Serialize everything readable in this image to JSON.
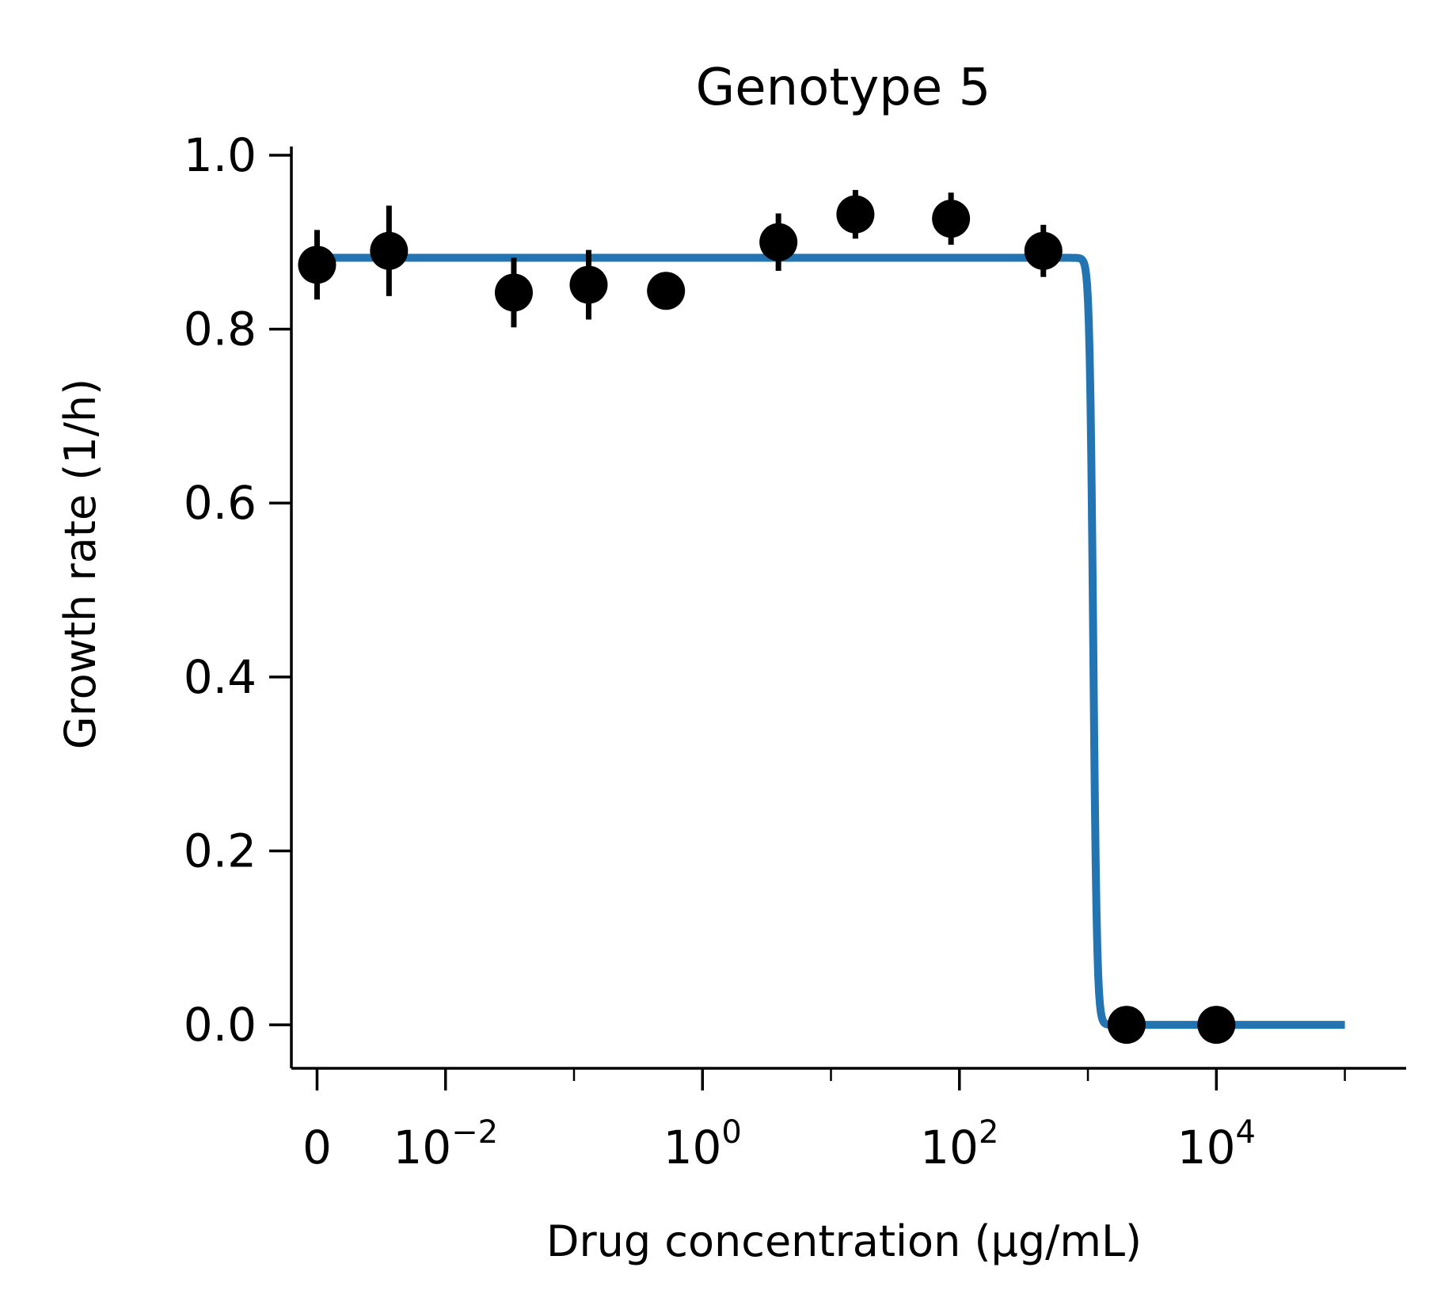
{
  "chart_data": {
    "type": "scatter",
    "title": "Genotype 5",
    "xlabel": "Drug concentration (µg/mL)",
    "ylabel": "Growth rate (1/h)",
    "x_scale": "symlog",
    "xlim": [
      -0.002,
      300000
    ],
    "ylim": [
      -0.05,
      1.01
    ],
    "grid": false,
    "colors": {
      "fit": "#2274b2",
      "points": "#000000"
    },
    "y_ticks": [
      {
        "value": 0.0,
        "label": "0.0"
      },
      {
        "value": 0.2,
        "label": "0.2"
      },
      {
        "value": 0.4,
        "label": "0.4"
      },
      {
        "value": 0.6,
        "label": "0.6"
      },
      {
        "value": 0.8,
        "label": "0.8"
      },
      {
        "value": 1.0,
        "label": "1.0"
      }
    ],
    "x_ticks": [
      {
        "value": 0,
        "base": "0",
        "exp": ""
      },
      {
        "value": 0.01,
        "base": "10",
        "exp": "−2"
      },
      {
        "value": 1,
        "base": "10",
        "exp": "0"
      },
      {
        "value": 100,
        "base": "10",
        "exp": "2"
      },
      {
        "value": 10000,
        "base": "10",
        "exp": "4"
      }
    ],
    "x_minor_ticks": [
      0.1,
      10,
      1000,
      100000
    ],
    "points": [
      {
        "x": 0,
        "y": 0.874,
        "err": 0.04
      },
      {
        "x": 0.0056,
        "y": 0.89,
        "err": 0.052
      },
      {
        "x": 0.034,
        "y": 0.842,
        "err": 0.04
      },
      {
        "x": 0.13,
        "y": 0.851,
        "err": 0.04
      },
      {
        "x": 0.52,
        "y": 0.844,
        "err": 0.01
      },
      {
        "x": 3.9,
        "y": 0.9,
        "err": 0.033
      },
      {
        "x": 15.5,
        "y": 0.932,
        "err": 0.028
      },
      {
        "x": 86,
        "y": 0.927,
        "err": 0.03
      },
      {
        "x": 450,
        "y": 0.89,
        "err": 0.03
      },
      {
        "x": 2000,
        "y": 0.0,
        "err": 0.0
      },
      {
        "x": 10000,
        "y": 0.0,
        "err": 0.0
      }
    ],
    "fit": {
      "top": 0.882,
      "bottom": 0.0,
      "ic50": 1100,
      "hill": 30,
      "x_range": [
        0,
        100000
      ]
    }
  }
}
